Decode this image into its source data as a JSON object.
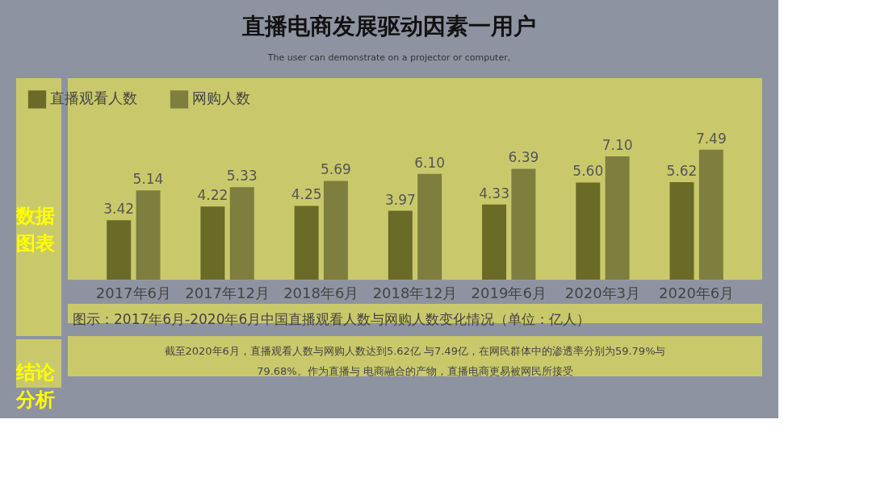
{
  "chart_data": {
    "type": "bar",
    "title": "直播电商发展驱动因素一用户",
    "subtitle": "The user can demonstrate on a projector or computer,",
    "categories": [
      "2017年6月",
      "2017年12月",
      "2018年6月",
      "2018年12月",
      "2019年6月",
      "2020年3月",
      "2020年6月"
    ],
    "series": [
      {
        "name": "直播观看人数",
        "color": "#6b6b28",
        "values": [
          3.42,
          4.22,
          4.25,
          3.97,
          4.33,
          5.6,
          5.62
        ],
        "value_labels": [
          "3.42",
          "4.22",
          "4.25",
          "3.97",
          "4.33",
          "5.60",
          "5.62"
        ]
      },
      {
        "name": "网购人数",
        "color": "#7e7e3e",
        "values": [
          5.14,
          5.33,
          5.69,
          6.1,
          6.39,
          7.1,
          7.49
        ],
        "value_labels": [
          "5.14",
          "5.33",
          "5.69",
          "6.10",
          "6.39",
          "7.10",
          "7.49"
        ]
      }
    ],
    "legend": "top left",
    "grid": false,
    "annotations": [
      "图示：2017年6月-2020年6月中国直播观看人数与网购人数变化情况（单位：亿人）",
      "截至2020年6月，直播观看人数与网购人数达到5.62亿 与7.49亿，在网民群体中的渗透率分别为59.79%与79.68%。作为直播与 电商融合的产物，直播电商更易被网民所接受",
      "数据图表",
      "结论分析"
    ]
  }
}
